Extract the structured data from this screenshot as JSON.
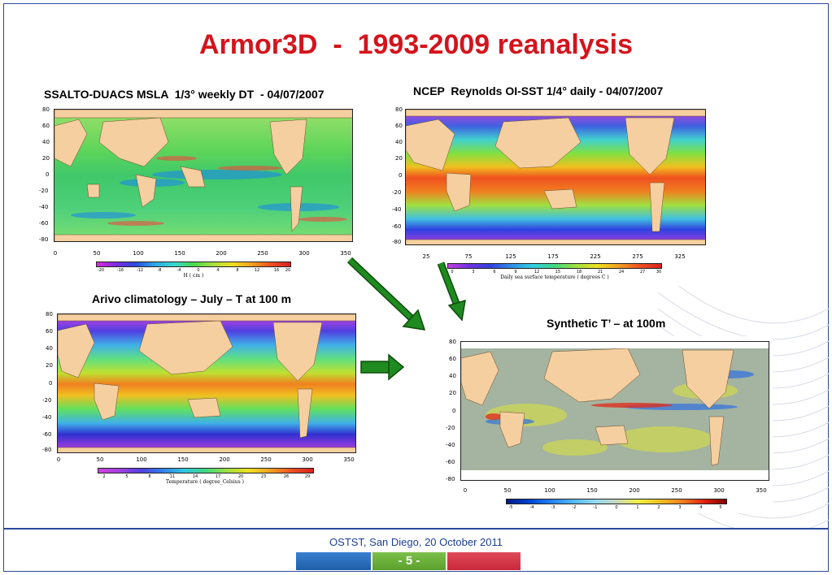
{
  "slide": {
    "title": "Armor3D  -  1993-2009 reanalysis",
    "footer": "OSTST, San Diego, 20 October 2011",
    "page_number": "- 5 -",
    "colors": {
      "title": "#d4141c",
      "frame": "#2a4a9a",
      "footer_text": "#1b3f95",
      "arrow": "#1f8a1f",
      "bar_blue": "#1f5fa8",
      "bar_green": "#5aa02c",
      "bar_red": "#c8283a"
    }
  },
  "panels": {
    "msla": {
      "caption": "SSALTO-DUACS MSLA  1/3° weekly DT  - 04/07/2007",
      "y_ticks": [
        "80",
        "60",
        "40",
        "20",
        "0",
        "-20",
        "-40",
        "-60",
        "-80"
      ],
      "x_ticks": [
        "0",
        "50",
        "100",
        "150",
        "200",
        "250",
        "300",
        "350"
      ],
      "colorbar_ticks": [
        "-20",
        "-16",
        "-12",
        "-8",
        "-4",
        "0",
        "4",
        "8",
        "12",
        "16",
        "20"
      ],
      "colorbar_label": "H ( cm )"
    },
    "sst": {
      "caption": "NCEP  Reynolds OI-SST 1/4° daily - 04/07/2007",
      "y_ticks": [
        "80",
        "60",
        "40",
        "20",
        "0",
        "-20",
        "-40",
        "-60",
        "-80"
      ],
      "x_ticks": [
        "25",
        "75",
        "125",
        "175",
        "225",
        "275",
        "325"
      ],
      "colorbar_ticks": [
        "0",
        "3",
        "6",
        "9",
        "12",
        "15",
        "18",
        "21",
        "24",
        "27",
        "30"
      ],
      "colorbar_label": "Daily sea surface temperature ( degrees C )"
    },
    "clim": {
      "caption": "Arivo climatology – July – T at 100 m",
      "y_ticks": [
        "80",
        "60",
        "40",
        "20",
        "0",
        "-20",
        "-40",
        "-60",
        "-80"
      ],
      "x_ticks": [
        "0",
        "50",
        "100",
        "150",
        "200",
        "250",
        "300",
        "350"
      ],
      "colorbar_ticks": [
        "2",
        "5",
        "8",
        "11",
        "14",
        "17",
        "20",
        "23",
        "26",
        "29"
      ],
      "colorbar_label": "Temperature ( degree_Celsius )"
    },
    "synth": {
      "caption": "Synthetic T’ – at 100m",
      "y_ticks": [
        "80",
        "60",
        "40",
        "20",
        "0",
        "-20",
        "-40",
        "-60",
        "-80"
      ],
      "x_ticks": [
        "0",
        "50",
        "100",
        "150",
        "200",
        "250",
        "300",
        "350"
      ],
      "colorbar_ticks": [
        "-5",
        "-4",
        "-3",
        "-2",
        "-1",
        "0",
        "1",
        "2",
        "3",
        "4",
        "5"
      ]
    }
  }
}
